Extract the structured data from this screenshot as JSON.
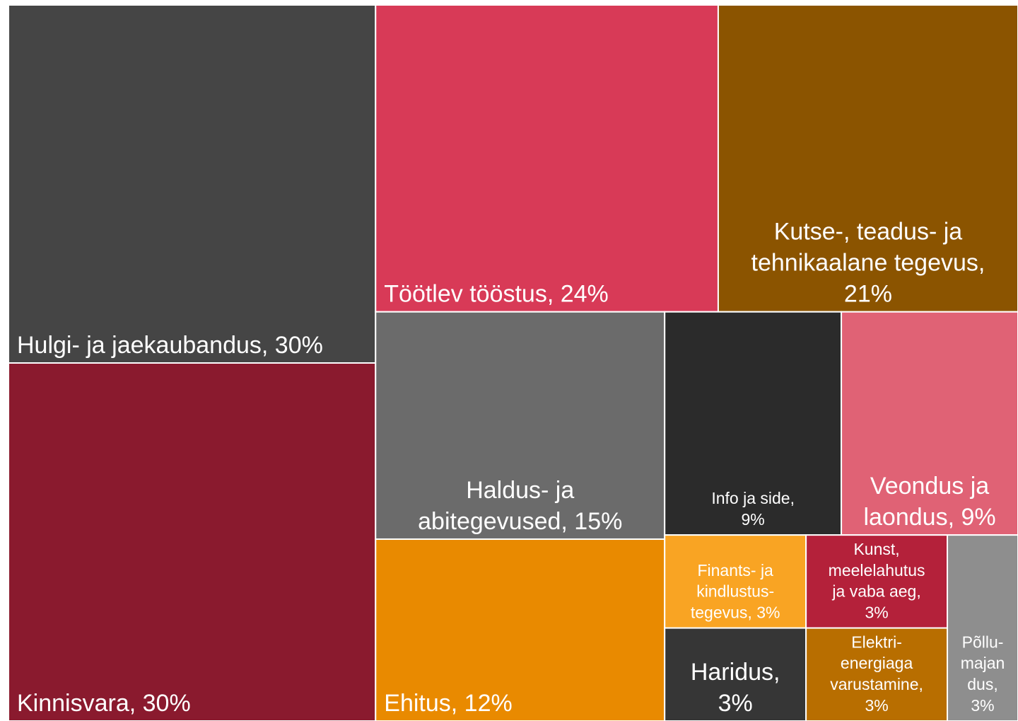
{
  "chart_data": {
    "type": "treemap",
    "labels": [
      [
        "Hulgi- ja jaekaubandus, 30%"
      ],
      [
        "Kinnisvara, 30%"
      ],
      [
        "Töötlev tööstus, 24%"
      ],
      [
        "Kutse-, teadus- ja",
        "tehnikaalane tegevus,",
        "21%"
      ],
      [
        "Haldus- ja",
        "abitegevused, 15%"
      ],
      [
        "Ehitus, 12%"
      ],
      [
        "Info ja side,",
        "9%"
      ],
      [
        "Veondus ja",
        "laondus, 9%"
      ],
      [
        "Finants- ja",
        "kindlustus-",
        "tegevus, 3%"
      ],
      [
        "Haridus,",
        "3%"
      ],
      [
        "Kunst,",
        "meelelahutus",
        "ja vaba aeg,",
        "3%"
      ],
      [
        "Elektri-",
        "energiaga",
        "varustamine,",
        "3%"
      ],
      [
        "Põllu-",
        "majan",
        "dus,",
        "3%"
      ]
    ],
    "values": [
      30,
      30,
      24,
      21,
      15,
      12,
      9,
      9,
      3,
      3,
      3,
      3,
      3
    ],
    "colors": [
      "#454545",
      "#8a1a2e",
      "#d83a57",
      "#8b5400",
      "#6b6b6b",
      "#e98a00",
      "#2b2b2b",
      "#e06275",
      "#f9a423",
      "#363636",
      "#b4213a",
      "#b86e00",
      "#8e8e8e"
    ]
  }
}
